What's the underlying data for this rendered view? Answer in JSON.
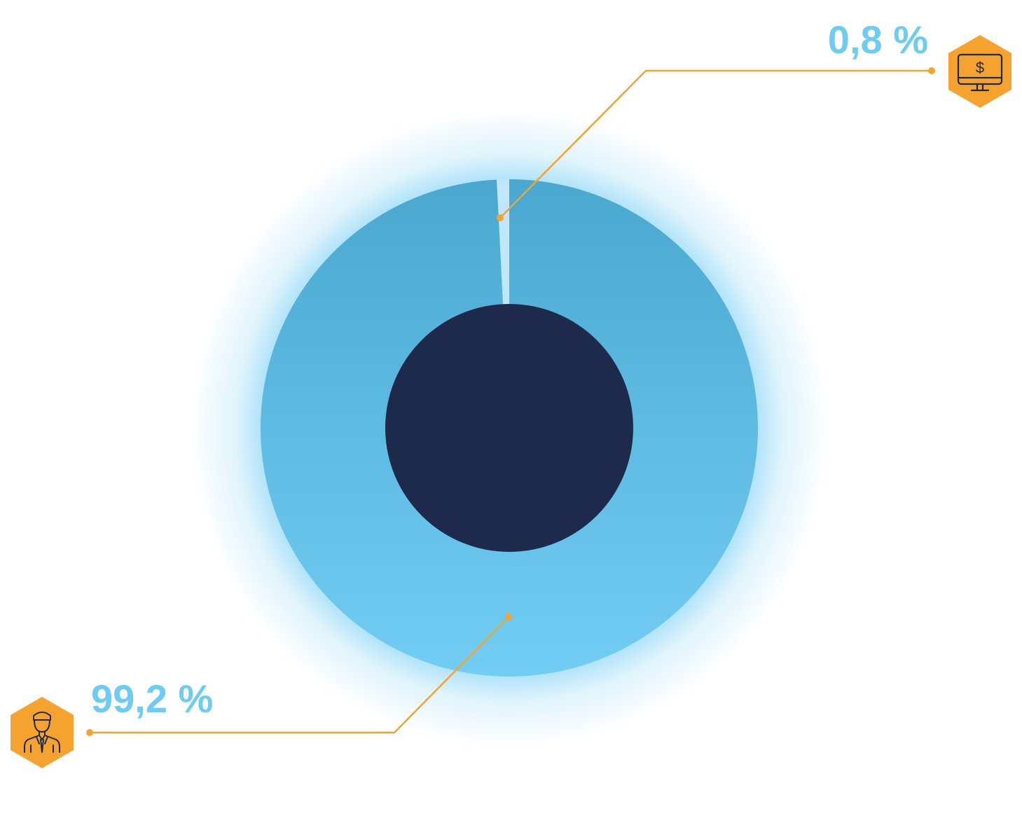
{
  "chart_data": {
    "type": "pie",
    "variant": "donut",
    "slices": [
      {
        "value": 99.2,
        "label": "99,2 %",
        "color": "#6ecbf2",
        "icon": "person-icon"
      },
      {
        "value": 0.8,
        "label": "0,8 %",
        "color": "#bfe6fa",
        "icon": "monitor-dollar-icon"
      }
    ]
  },
  "colors": {
    "ring_top": "#4aa8cf",
    "ring_bottom": "#72cdf4",
    "small_slice": "#bfe6fa",
    "hole": "#1d2a4b",
    "glow": "#72cdf4",
    "accent": "#f6a22e",
    "label_text": "#6ecbf2",
    "icon_stroke": "#1d2a4b"
  }
}
